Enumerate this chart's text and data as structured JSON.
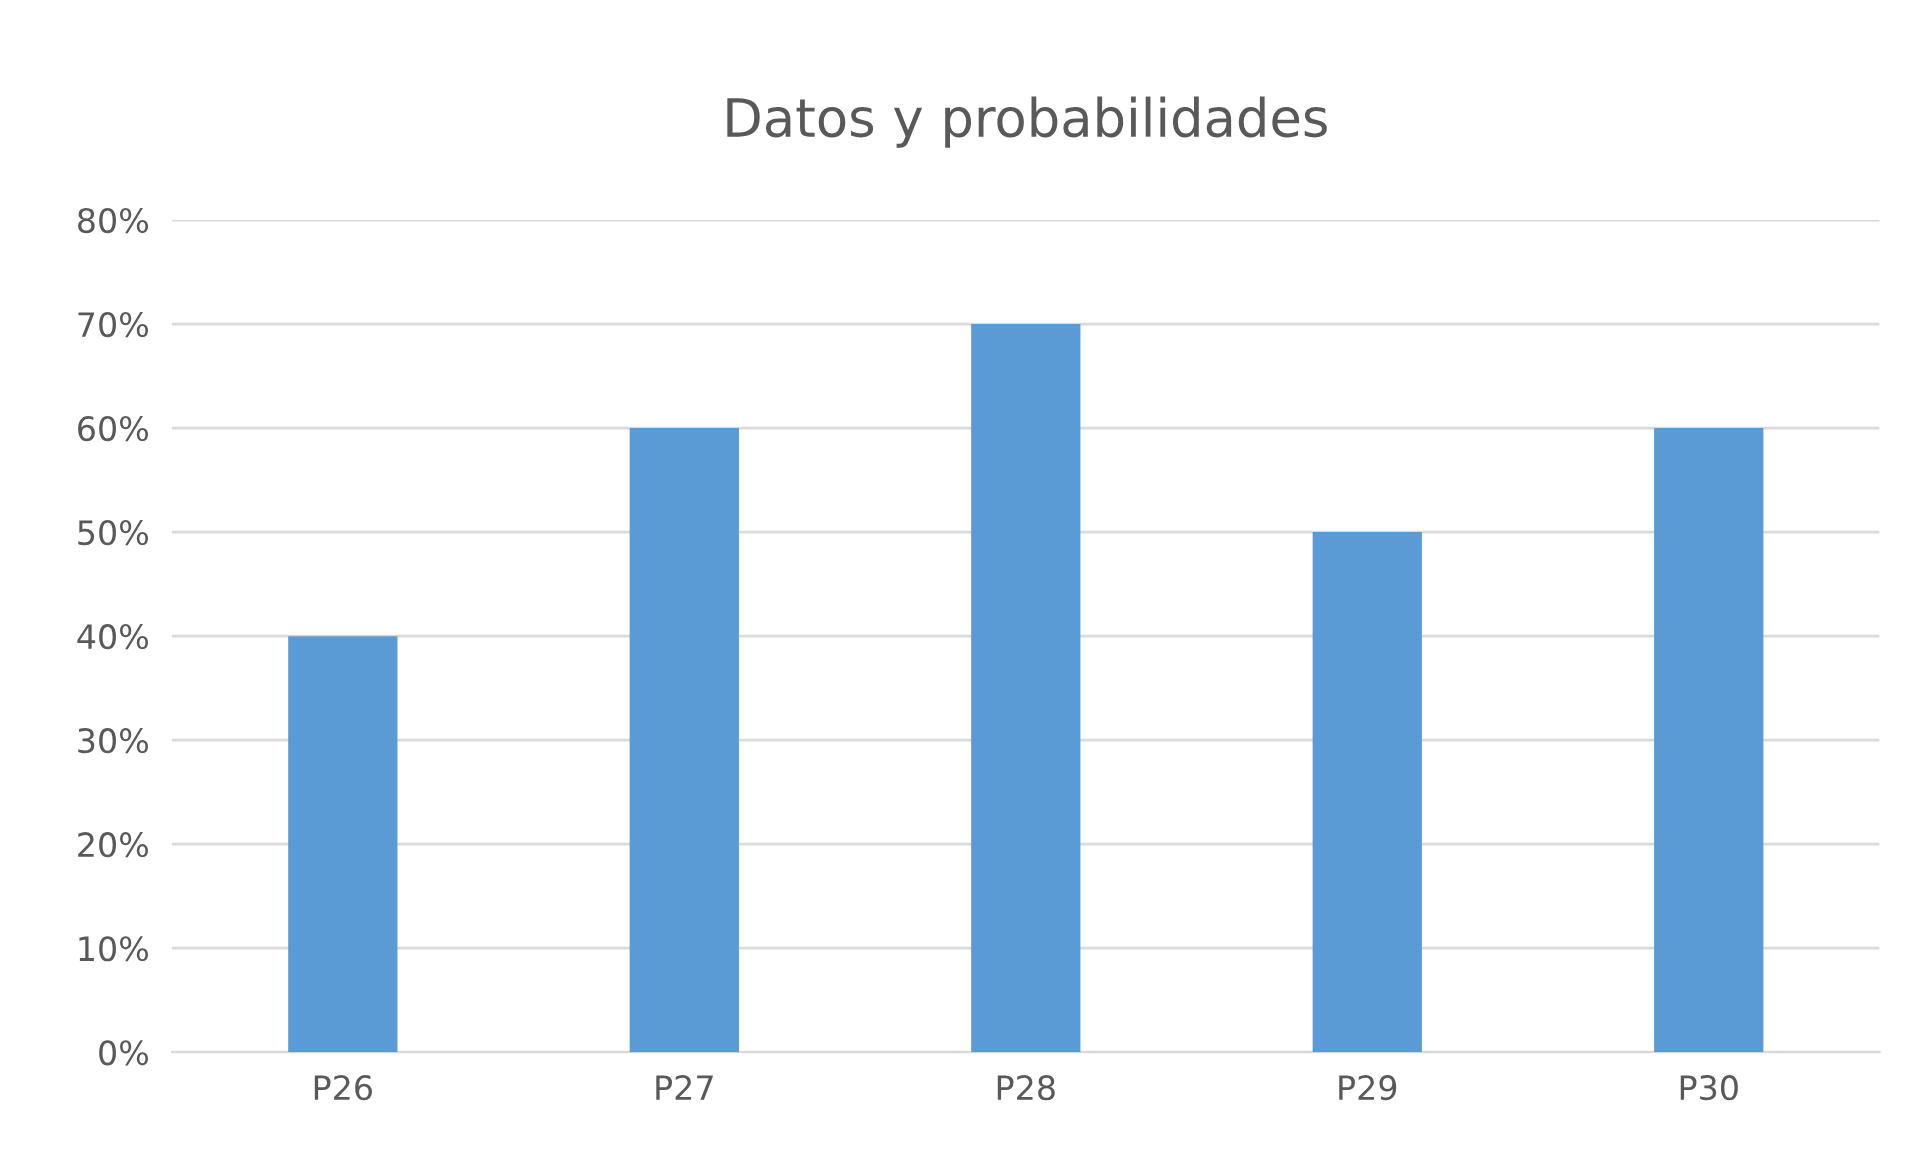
{
  "chart_data": {
    "type": "bar",
    "title": "Datos y probabilidades",
    "categories": [
      "P26",
      "P27",
      "P28",
      "P29",
      "P30"
    ],
    "values": [
      40,
      60,
      70,
      50,
      60
    ],
    "color": "#5b9bd5",
    "ylim": [
      0,
      80
    ],
    "yticks": [
      {
        "value": 0,
        "label": "0%"
      },
      {
        "value": 10,
        "label": "10%"
      },
      {
        "value": 20,
        "label": "20%"
      },
      {
        "value": 30,
        "label": "30%"
      },
      {
        "value": 40,
        "label": "40%"
      },
      {
        "value": 50,
        "label": "50%"
      },
      {
        "value": 60,
        "label": "60%"
      },
      {
        "value": 70,
        "label": "70%"
      },
      {
        "value": 80,
        "label": "80%"
      }
    ],
    "grid": "y",
    "legend": false
  }
}
